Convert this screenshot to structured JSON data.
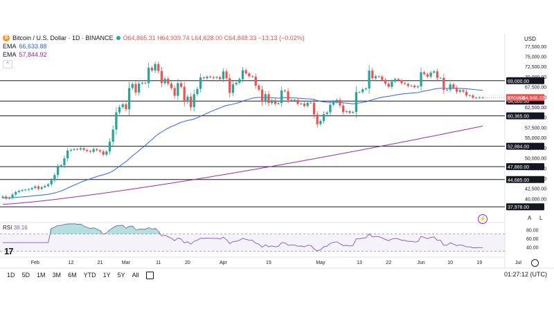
{
  "header": {
    "symbol_title": "Bitcoin / U.S. Dollar · 1D · BINANCE",
    "ohlc": "O64,865.31 H64,939.74 L64,628.00 C64,848.33 −13.13 (−0.02%)",
    "ema50_label": "EMA",
    "ema50_value": "66,633.88",
    "ema200_label": "EMA",
    "ema200_value": "57,844.92",
    "collapse_glyph": "^",
    "currency": "USD"
  },
  "rsi": {
    "label": "RSI",
    "value": "38.16"
  },
  "bottom_bar": {
    "timeframes": [
      "1D",
      "5D",
      "1M",
      "3M",
      "6M",
      "YTD",
      "1Y",
      "5Y",
      "All"
    ],
    "clock": "01:27:12 (UTC)"
  },
  "axis_buttons": {
    "auto": "A",
    "log": "L"
  },
  "tv_logo": "17",
  "colors": {
    "up": "#26a69a",
    "down": "#ef5350",
    "ema50": "#2962ff",
    "ema200": "#9c27b0",
    "hline": "#131722",
    "rsi": "#7e57c2"
  },
  "chart_data": {
    "type": "candlestick",
    "title": "Bitcoin / U.S. Dollar · 1D · BINANCE",
    "ylim": [
      37000,
      79000
    ],
    "y_ticks": [
      77500,
      75000,
      72500,
      70000,
      67500,
      65000,
      62500,
      60000,
      57500,
      55000,
      52500,
      50000,
      47500,
      45000,
      42500,
      40000
    ],
    "y_tick_labels": [
      "77,500.00",
      "75,000.00",
      "72,500.00",
      "70,000.00",
      "67,500.00",
      "65,000.00",
      "62,500.00",
      "60,000.00",
      "57,500.00",
      "55,000.00",
      "52,500.00",
      "50,000.00",
      "47,500.00",
      "45,000.00",
      "42,500.00",
      "40,000.00"
    ],
    "x_labels": [
      "Feb",
      "12",
      "21",
      "Mar",
      "11",
      "20",
      "Apr",
      "15",
      "May",
      "13",
      "22",
      "Jun",
      "10",
      "19",
      "Jul"
    ],
    "x_label_days": [
      10,
      21,
      30,
      38,
      48,
      57,
      68,
      82,
      98,
      110,
      119,
      129,
      138,
      147,
      159
    ],
    "horizontal_levels": [
      {
        "value": 69000,
        "label": "69,000.00"
      },
      {
        "value": 64000,
        "label": "64,000.00"
      },
      {
        "value": 60365,
        "label": "60,365.00"
      },
      {
        "value": 52884,
        "label": "52,884.00"
      },
      {
        "value": 47860,
        "label": "47,860.00"
      },
      {
        "value": 44685,
        "label": "44,685.00"
      },
      {
        "value": 37978,
        "label": "37,978.00"
      }
    ],
    "current_price": {
      "value": 64848.33,
      "label": "64,848.33",
      "tag": "BTCUSD"
    },
    "close_series": [
      40500,
      40000,
      40200,
      41000,
      41600,
      41900,
      42100,
      42200,
      42300,
      42600,
      43000,
      42400,
      42800,
      43100,
      43500,
      44500,
      45800,
      47800,
      48200,
      49900,
      51800,
      52000,
      52200,
      52100,
      52400,
      52000,
      51700,
      51500,
      52200,
      51900,
      51600,
      50800,
      51600,
      54000,
      57000,
      61200,
      62500,
      63200,
      62000,
      67200,
      68200,
      66100,
      68300,
      68500,
      68400,
      72200,
      71500,
      73100,
      71400,
      68400,
      69500,
      68300,
      67200,
      65300,
      68400,
      67500,
      63800,
      65100,
      62500,
      65700,
      67000,
      69800,
      69600,
      70000,
      69900,
      69700,
      69900,
      69400,
      71300,
      69600,
      66000,
      68100,
      68500,
      69400,
      71600,
      70800,
      70100,
      70000,
      67800,
      66800,
      63800,
      65700,
      63500,
      64200,
      63300,
      63500,
      66600,
      66400,
      64200,
      64300,
      64300,
      63300,
      63400,
      62800,
      63600,
      63600,
      60700,
      58300,
      59100,
      60800,
      61200,
      63100,
      63800,
      64300,
      62900,
      61300,
      61500,
      61100,
      61300,
      66200,
      66200,
      66900,
      67100,
      71500,
      69600,
      70100,
      70000,
      69200,
      68300,
      67500,
      68800,
      69400,
      69100,
      68400,
      68200,
      67700,
      67800,
      67400,
      67600,
      71100,
      70600,
      70000,
      71000,
      71300,
      69700,
      69700,
      66700,
      66800,
      68100,
      67300,
      66300,
      66700,
      66300,
      65400,
      65400,
      64800,
      64800,
      64900,
      64850
    ],
    "ema50_last": 66633.88,
    "ema200_last": 57844.92,
    "rsi_ylim": [
      0,
      100
    ],
    "rsi_tick_labels": [
      "80.00",
      "60.00",
      "40.00"
    ],
    "rsi_ticks": [
      80,
      60,
      40
    ],
    "rsi_last": 38.16
  }
}
